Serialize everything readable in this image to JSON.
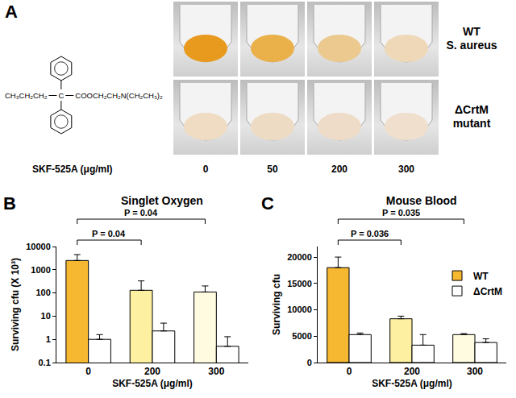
{
  "panel_a": {
    "label": "A",
    "formula": {
      "left": "CH₃CH₂CH₂",
      "center": "C",
      "right": "COOCH₂CH₂N(CH₂CH₃)₂"
    },
    "compound": "SKF-525A (μg/ml)",
    "doses": [
      "0",
      "50",
      "200",
      "300"
    ],
    "rows": [
      {
        "label_lines": [
          "WT",
          "S. aureus"
        ],
        "colors": [
          "#e89a1e",
          "#eab04a",
          "#ecc98f",
          "#efd8b8"
        ]
      },
      {
        "label_lines": [
          "ΔCrtM",
          "mutant"
        ],
        "colors": [
          "#efdcc3",
          "#eedbc4",
          "#eedcc8",
          "#efdfcc"
        ]
      }
    ]
  },
  "chart_data": [
    {
      "label": "B",
      "type": "bar",
      "title": "Singlet Oxygen",
      "x_label": "SKF-525A (μg/ml)",
      "y_label": "Surviving cfu (X 10³)",
      "categories": [
        "0",
        "200",
        "300"
      ],
      "series": [
        {
          "colors": [
            "#f6b731",
            "#fdf0a0",
            "#fffbe0"
          ],
          "values": [
            2500,
            130,
            110
          ],
          "errors": [
            2000,
            200,
            90
          ]
        },
        {
          "color": "#ffffff",
          "values": [
            1,
            2.3,
            0.5
          ],
          "errors": [
            0.6,
            2.7,
            0.8
          ]
        }
      ],
      "log": "y",
      "ylim": [
        0.1,
        10000
      ],
      "yticks": [
        0.1,
        1,
        10,
        100,
        1000,
        10000
      ],
      "grid": false,
      "annotations": [
        {
          "text": "P = 0.04",
          "from": "0",
          "to": "200"
        },
        {
          "text": "P = 0.04",
          "from": "0",
          "to": "300"
        }
      ]
    },
    {
      "label": "C",
      "type": "bar",
      "title": "Mouse Blood",
      "x_label": "SKF-525A (μg/ml)",
      "y_label": "Surviving cfu",
      "categories": [
        "0",
        "200",
        "300"
      ],
      "series": [
        {
          "name": "WT",
          "colors": [
            "#f6b731",
            "#fdf0a0",
            "#fffbe0"
          ],
          "values": [
            18000,
            8300,
            5300
          ],
          "errors": [
            2000,
            500,
            200
          ]
        },
        {
          "name": "ΔCrtM",
          "color": "#ffffff",
          "values": [
            5300,
            3300,
            3800
          ],
          "errors": [
            300,
            2000,
            700
          ]
        }
      ],
      "ylim": [
        0,
        22000
      ],
      "yticks": [
        0,
        5000,
        10000,
        15000,
        20000
      ],
      "grid": false,
      "legend": "upper right",
      "annotations": [
        {
          "text": "P = 0.036",
          "from": "0",
          "to": "200"
        },
        {
          "text": "P = 0.035",
          "from": "0",
          "to": "300"
        }
      ]
    }
  ]
}
